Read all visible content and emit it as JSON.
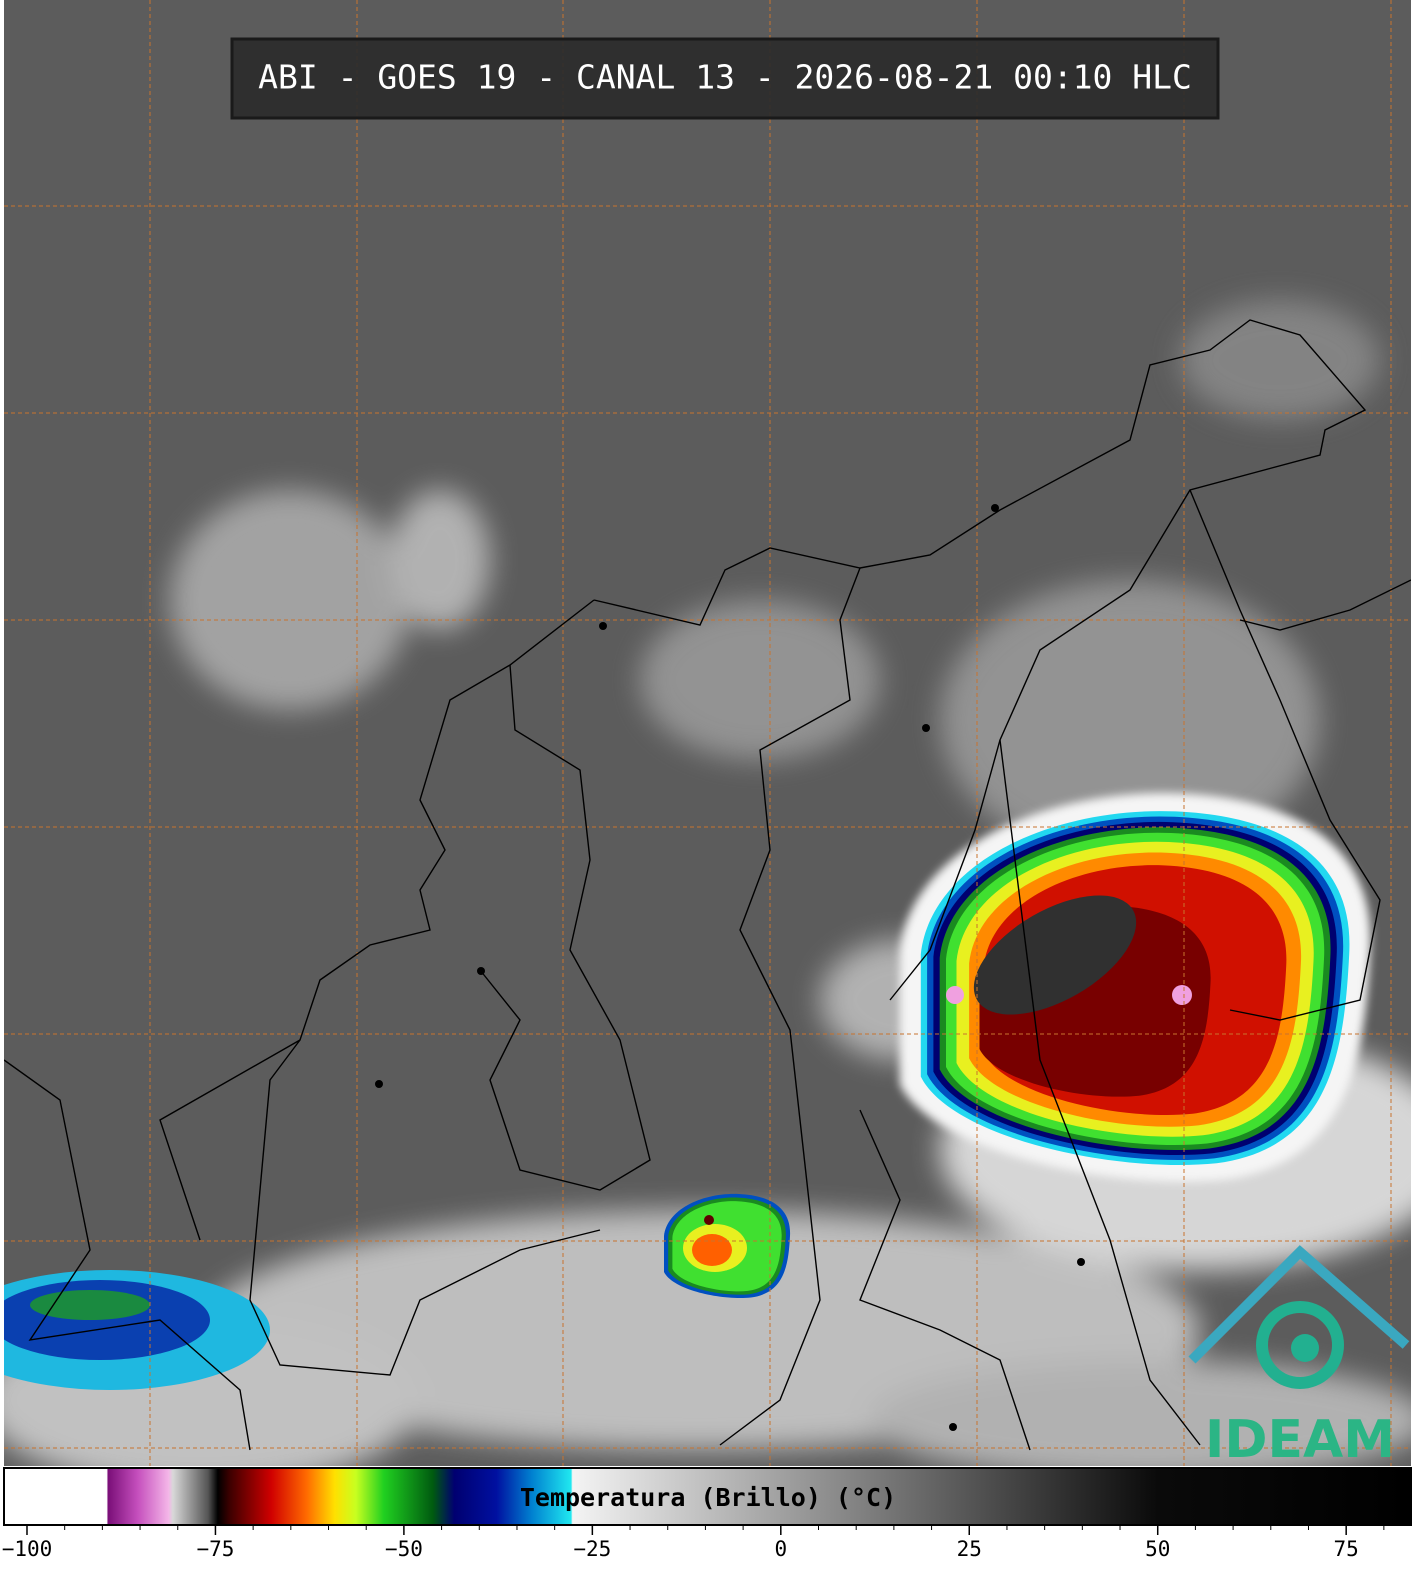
{
  "title": "ABI - GOES 19 - CANAL 13 - 2026-08-21 00:10 HLC",
  "logo": "IDEAM",
  "colorbar": {
    "label": "Temperatura (Brillo) (°C)",
    "xlim": [
      -103.05,
      83.6
    ],
    "ticks": [
      {
        "value": -100,
        "label": "−100"
      },
      {
        "value": -75,
        "label": "−75"
      },
      {
        "value": -50,
        "label": "−50"
      },
      {
        "value": -25,
        "label": "−25"
      },
      0,
      25,
      50,
      75
    ]
  }
}
